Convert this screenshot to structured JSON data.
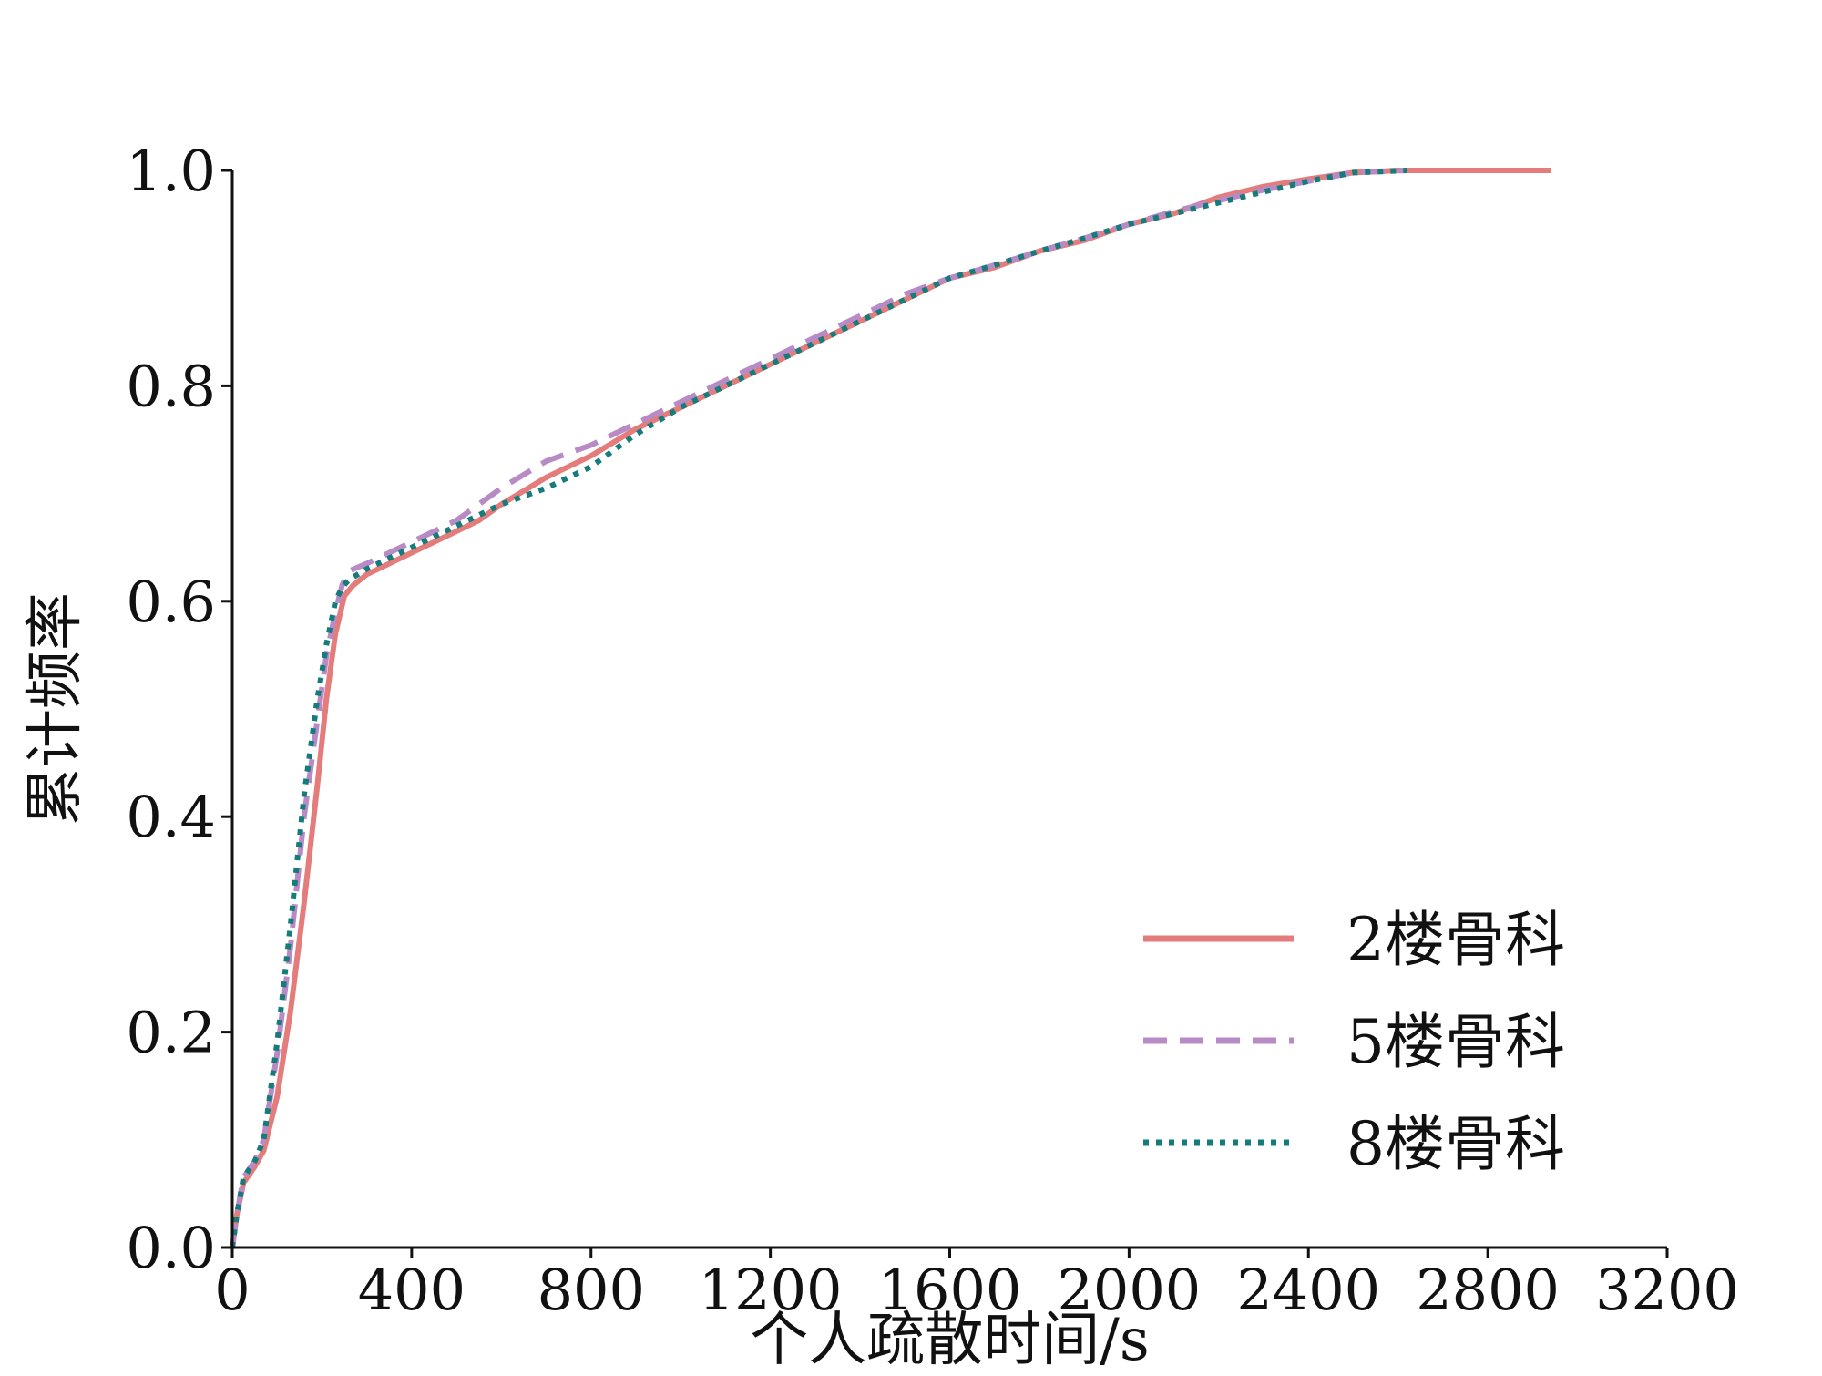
{
  "chart_data": {
    "type": "line",
    "title": "",
    "xlabel": "个人疏散时间/s",
    "ylabel": "累计频率",
    "xlim": [
      0,
      3200
    ],
    "ylim": [
      0,
      1.0
    ],
    "x_ticks": [
      "0",
      "400",
      "800",
      "1200",
      "1600",
      "2000",
      "2400",
      "2800",
      "3200"
    ],
    "y_ticks": [
      "0.0",
      "0.2",
      "0.4",
      "0.6",
      "0.8",
      "1.0"
    ],
    "x_tick_values": [
      0,
      400,
      800,
      1200,
      1600,
      2000,
      2400,
      2800,
      3200
    ],
    "y_tick_values": [
      0,
      0.2,
      0.4,
      0.6,
      0.8,
      1.0
    ],
    "grid": false,
    "legend_position": "bottom-right",
    "series": [
      {
        "name": "2楼骨科",
        "color": "#E57C7C",
        "style": "solid",
        "points": [
          [
            0,
            0
          ],
          [
            10,
            0.03
          ],
          [
            25,
            0.06
          ],
          [
            50,
            0.075
          ],
          [
            70,
            0.09
          ],
          [
            100,
            0.14
          ],
          [
            130,
            0.22
          ],
          [
            160,
            0.32
          ],
          [
            190,
            0.43
          ],
          [
            210,
            0.51
          ],
          [
            230,
            0.57
          ],
          [
            250,
            0.605
          ],
          [
            270,
            0.615
          ],
          [
            300,
            0.625
          ],
          [
            350,
            0.635
          ],
          [
            400,
            0.645
          ],
          [
            450,
            0.655
          ],
          [
            500,
            0.665
          ],
          [
            550,
            0.675
          ],
          [
            600,
            0.69
          ],
          [
            700,
            0.715
          ],
          [
            800,
            0.735
          ],
          [
            900,
            0.76
          ],
          [
            1000,
            0.78
          ],
          [
            1100,
            0.8
          ],
          [
            1200,
            0.82
          ],
          [
            1300,
            0.84
          ],
          [
            1400,
            0.86
          ],
          [
            1500,
            0.88
          ],
          [
            1600,
            0.9
          ],
          [
            1700,
            0.91
          ],
          [
            1800,
            0.925
          ],
          [
            1900,
            0.935
          ],
          [
            2000,
            0.95
          ],
          [
            2100,
            0.96
          ],
          [
            2200,
            0.975
          ],
          [
            2300,
            0.985
          ],
          [
            2400,
            0.992
          ],
          [
            2500,
            0.998
          ],
          [
            2600,
            1.0
          ],
          [
            2940,
            1.0
          ]
        ]
      },
      {
        "name": "5楼骨科",
        "color": "#B88BC6",
        "style": "dashed",
        "points": [
          [
            0,
            0
          ],
          [
            10,
            0.03
          ],
          [
            25,
            0.065
          ],
          [
            50,
            0.08
          ],
          [
            70,
            0.1
          ],
          [
            100,
            0.18
          ],
          [
            130,
            0.28
          ],
          [
            160,
            0.4
          ],
          [
            190,
            0.49
          ],
          [
            210,
            0.55
          ],
          [
            230,
            0.59
          ],
          [
            245,
            0.615
          ],
          [
            260,
            0.628
          ],
          [
            300,
            0.635
          ],
          [
            350,
            0.645
          ],
          [
            400,
            0.655
          ],
          [
            450,
            0.665
          ],
          [
            500,
            0.675
          ],
          [
            550,
            0.69
          ],
          [
            600,
            0.705
          ],
          [
            700,
            0.73
          ],
          [
            800,
            0.745
          ],
          [
            900,
            0.765
          ],
          [
            1000,
            0.785
          ],
          [
            1100,
            0.805
          ],
          [
            1200,
            0.825
          ],
          [
            1300,
            0.845
          ],
          [
            1400,
            0.865
          ],
          [
            1500,
            0.885
          ],
          [
            1600,
            0.9
          ],
          [
            1700,
            0.912
          ],
          [
            1800,
            0.925
          ],
          [
            1900,
            0.937
          ],
          [
            2000,
            0.95
          ],
          [
            2100,
            0.962
          ],
          [
            2200,
            0.972
          ],
          [
            2300,
            0.982
          ],
          [
            2400,
            0.99
          ],
          [
            2500,
            0.998
          ],
          [
            2620,
            1.0
          ]
        ]
      },
      {
        "name": "8楼骨科",
        "color": "#157B7B",
        "style": "dotted",
        "points": [
          [
            0,
            0
          ],
          [
            10,
            0.03
          ],
          [
            25,
            0.065
          ],
          [
            50,
            0.08
          ],
          [
            70,
            0.1
          ],
          [
            100,
            0.19
          ],
          [
            130,
            0.3
          ],
          [
            160,
            0.42
          ],
          [
            190,
            0.51
          ],
          [
            210,
            0.56
          ],
          [
            230,
            0.6
          ],
          [
            245,
            0.613
          ],
          [
            260,
            0.62
          ],
          [
            300,
            0.63
          ],
          [
            350,
            0.64
          ],
          [
            400,
            0.65
          ],
          [
            450,
            0.66
          ],
          [
            500,
            0.67
          ],
          [
            550,
            0.68
          ],
          [
            600,
            0.69
          ],
          [
            700,
            0.705
          ],
          [
            800,
            0.725
          ],
          [
            900,
            0.755
          ],
          [
            1000,
            0.78
          ],
          [
            1100,
            0.8
          ],
          [
            1200,
            0.82
          ],
          [
            1300,
            0.84
          ],
          [
            1400,
            0.86
          ],
          [
            1500,
            0.88
          ],
          [
            1600,
            0.9
          ],
          [
            1700,
            0.912
          ],
          [
            1800,
            0.925
          ],
          [
            1900,
            0.937
          ],
          [
            2000,
            0.95
          ],
          [
            2100,
            0.96
          ],
          [
            2200,
            0.97
          ],
          [
            2300,
            0.98
          ],
          [
            2400,
            0.99
          ],
          [
            2500,
            0.998
          ],
          [
            2620,
            1.0
          ]
        ]
      }
    ]
  }
}
